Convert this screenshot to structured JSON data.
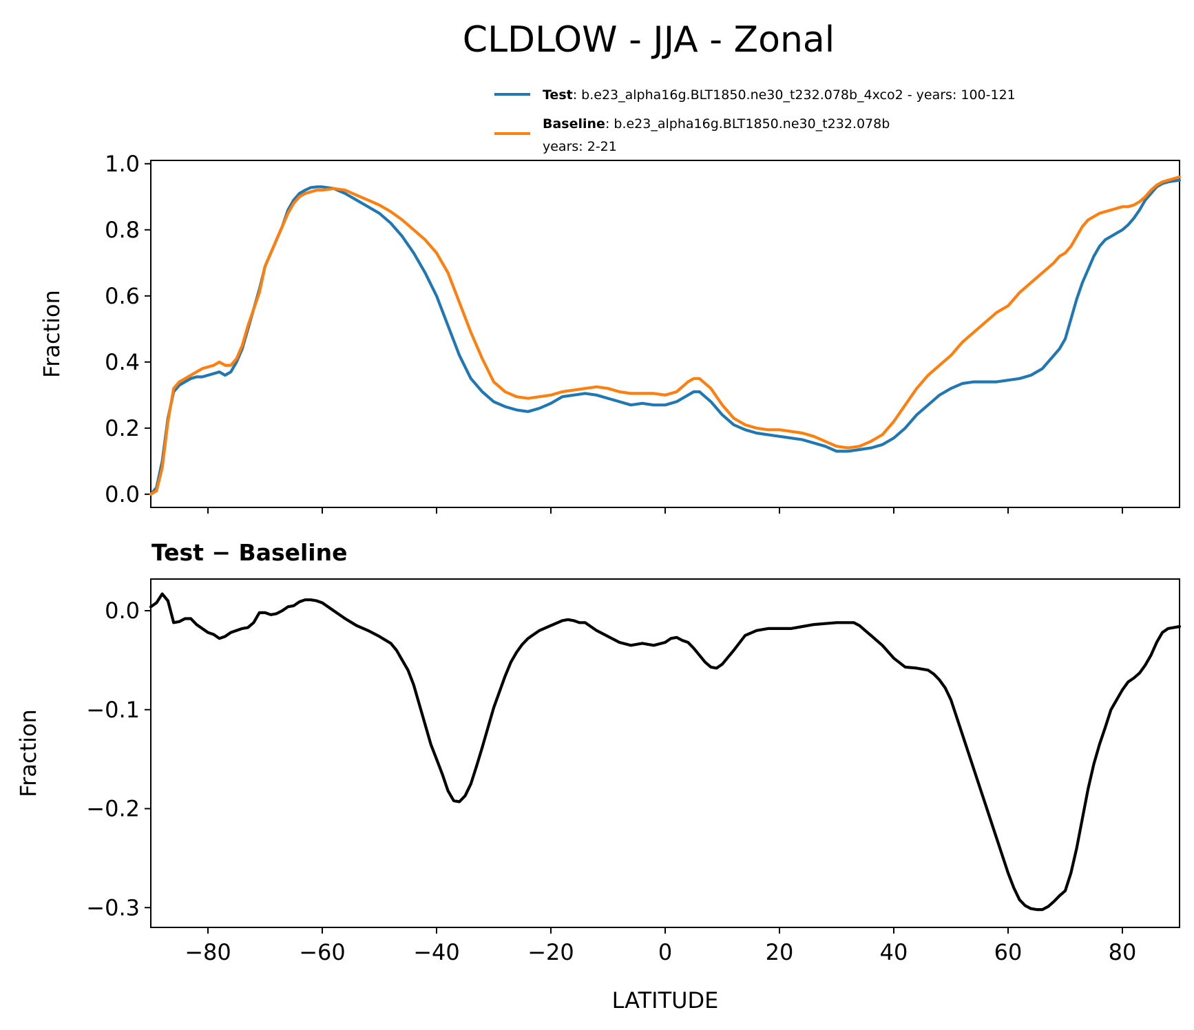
{
  "chart_data": [
    {
      "type": "line",
      "title": "CLDLOW - JJA - Zonal",
      "xlabel": "",
      "ylabel": "Fraction",
      "xlim": [
        -90,
        90
      ],
      "ylim": [
        -0.04,
        1.01
      ],
      "yticks": [
        0.0,
        0.2,
        0.4,
        0.6,
        0.8,
        1.0
      ],
      "ytick_labels": [
        "0.0",
        "0.2",
        "0.4",
        "0.6",
        "0.8",
        "1.0"
      ],
      "legend": {
        "position": "top-right",
        "entries": [
          {
            "name": "Test",
            "text": ": b.e23_alpha16g.BLT1850.ne30_t232.078b_4xco2 - years: 100-121",
            "text2": ""
          },
          {
            "name": "Baseline",
            "text": ": b.e23_alpha16g.BLT1850.ne30_t232.078b",
            "text2": "years: 2-21"
          }
        ]
      },
      "series": [
        {
          "name": "Test",
          "color": "#1f77b4",
          "x": [
            -90,
            -89,
            -88,
            -87,
            -86,
            -85,
            -84,
            -83,
            -82,
            -81,
            -80,
            -79,
            -78,
            -77,
            -76,
            -75,
            -74,
            -73,
            -72,
            -71,
            -70,
            -69,
            -68,
            -67,
            -66,
            -65,
            -64,
            -63,
            -62,
            -61,
            -60,
            -58,
            -56,
            -54,
            -52,
            -50,
            -48,
            -46,
            -44,
            -42,
            -40,
            -38,
            -36,
            -34,
            -32,
            -30,
            -28,
            -26,
            -24,
            -22,
            -20,
            -18,
            -16,
            -14,
            -12,
            -10,
            -8,
            -6,
            -4,
            -2,
            0,
            2,
            4,
            5,
            6,
            8,
            10,
            12,
            14,
            16,
            18,
            20,
            22,
            24,
            26,
            28,
            30,
            32,
            34,
            36,
            38,
            40,
            42,
            44,
            46,
            48,
            50,
            52,
            54,
            56,
            58,
            60,
            62,
            64,
            66,
            68,
            69,
            70,
            71,
            72,
            73,
            74,
            75,
            76,
            77,
            78,
            79,
            80,
            81,
            82,
            83,
            84,
            85,
            86,
            87,
            88,
            89,
            90
          ],
          "y": [
            0.0,
            0.02,
            0.1,
            0.23,
            0.31,
            0.33,
            0.34,
            0.35,
            0.355,
            0.355,
            0.36,
            0.365,
            0.37,
            0.36,
            0.37,
            0.4,
            0.44,
            0.5,
            0.56,
            0.62,
            0.69,
            0.73,
            0.77,
            0.81,
            0.86,
            0.89,
            0.91,
            0.92,
            0.928,
            0.93,
            0.93,
            0.925,
            0.91,
            0.89,
            0.87,
            0.85,
            0.82,
            0.78,
            0.73,
            0.67,
            0.6,
            0.51,
            0.42,
            0.35,
            0.31,
            0.28,
            0.265,
            0.255,
            0.25,
            0.26,
            0.275,
            0.295,
            0.3,
            0.305,
            0.3,
            0.29,
            0.28,
            0.27,
            0.275,
            0.27,
            0.27,
            0.28,
            0.3,
            0.31,
            0.31,
            0.28,
            0.24,
            0.21,
            0.195,
            0.185,
            0.18,
            0.175,
            0.17,
            0.165,
            0.155,
            0.145,
            0.13,
            0.13,
            0.135,
            0.14,
            0.15,
            0.17,
            0.2,
            0.24,
            0.27,
            0.3,
            0.32,
            0.335,
            0.34,
            0.34,
            0.34,
            0.345,
            0.35,
            0.36,
            0.38,
            0.42,
            0.44,
            0.47,
            0.53,
            0.59,
            0.64,
            0.68,
            0.72,
            0.75,
            0.77,
            0.78,
            0.79,
            0.8,
            0.815,
            0.835,
            0.86,
            0.89,
            0.91,
            0.93,
            0.94,
            0.945,
            0.948,
            0.95
          ]
        },
        {
          "name": "Baseline",
          "color": "#ff7f0e",
          "x": [
            -90,
            -89,
            -88,
            -87,
            -86,
            -85,
            -84,
            -83,
            -82,
            -81,
            -80,
            -79,
            -78,
            -77,
            -76,
            -75,
            -74,
            -73,
            -72,
            -71,
            -70,
            -69,
            -68,
            -67,
            -66,
            -65,
            -64,
            -63,
            -62,
            -61,
            -60,
            -58,
            -56,
            -54,
            -52,
            -50,
            -48,
            -46,
            -44,
            -42,
            -40,
            -38,
            -36,
            -34,
            -32,
            -30,
            -28,
            -26,
            -24,
            -22,
            -20,
            -18,
            -16,
            -14,
            -12,
            -10,
            -8,
            -6,
            -4,
            -2,
            0,
            2,
            4,
            5,
            6,
            8,
            10,
            12,
            14,
            16,
            18,
            20,
            22,
            24,
            26,
            28,
            30,
            32,
            34,
            36,
            38,
            40,
            42,
            44,
            46,
            48,
            50,
            52,
            54,
            56,
            58,
            60,
            62,
            64,
            66,
            68,
            69,
            70,
            71,
            72,
            73,
            74,
            75,
            76,
            77,
            78,
            79,
            80,
            81,
            82,
            83,
            84,
            85,
            86,
            87,
            88,
            89,
            90
          ],
          "y": [
            0.0,
            0.01,
            0.08,
            0.22,
            0.32,
            0.34,
            0.35,
            0.36,
            0.37,
            0.38,
            0.385,
            0.39,
            0.4,
            0.39,
            0.39,
            0.41,
            0.45,
            0.51,
            0.56,
            0.61,
            0.69,
            0.73,
            0.77,
            0.81,
            0.85,
            0.88,
            0.9,
            0.91,
            0.915,
            0.92,
            0.92,
            0.925,
            0.92,
            0.905,
            0.89,
            0.875,
            0.855,
            0.83,
            0.8,
            0.77,
            0.73,
            0.67,
            0.58,
            0.49,
            0.41,
            0.34,
            0.31,
            0.295,
            0.29,
            0.295,
            0.3,
            0.31,
            0.315,
            0.32,
            0.325,
            0.32,
            0.31,
            0.305,
            0.305,
            0.305,
            0.3,
            0.31,
            0.34,
            0.35,
            0.35,
            0.32,
            0.27,
            0.23,
            0.21,
            0.2,
            0.195,
            0.195,
            0.19,
            0.185,
            0.175,
            0.16,
            0.145,
            0.14,
            0.145,
            0.16,
            0.18,
            0.22,
            0.27,
            0.32,
            0.36,
            0.39,
            0.42,
            0.46,
            0.49,
            0.52,
            0.55,
            0.57,
            0.61,
            0.64,
            0.67,
            0.7,
            0.72,
            0.73,
            0.75,
            0.78,
            0.81,
            0.83,
            0.84,
            0.85,
            0.855,
            0.86,
            0.865,
            0.87,
            0.87,
            0.875,
            0.885,
            0.9,
            0.92,
            0.935,
            0.945,
            0.95,
            0.955,
            0.96
          ]
        }
      ]
    },
    {
      "type": "line",
      "title": "Test − Baseline",
      "xlabel": "LATITUDE",
      "ylabel": "Fraction",
      "xlim": [
        -90,
        90
      ],
      "ylim": [
        -0.32,
        0.032
      ],
      "xticks": [
        -80,
        -60,
        -40,
        -20,
        0,
        20,
        40,
        60,
        80
      ],
      "xtick_labels": [
        "−80",
        "−60",
        "−40",
        "−20",
        "0",
        "20",
        "40",
        "60",
        "80"
      ],
      "yticks": [
        0.0,
        -0.1,
        -0.2,
        -0.3
      ],
      "ytick_labels": [
        "0.0",
        "−0.1",
        "−0.2",
        "−0.3"
      ],
      "series": [
        {
          "name": "Test − Baseline",
          "color": "#000000",
          "x": [
            -90,
            -89,
            -88,
            -87,
            -86,
            -85,
            -84,
            -83,
            -82,
            -81,
            -80,
            -79,
            -78,
            -77,
            -76,
            -75,
            -74,
            -73,
            -72,
            -71,
            -70,
            -69,
            -68,
            -67,
            -66,
            -65,
            -64,
            -63,
            -62,
            -61,
            -60,
            -58,
            -56,
            -54,
            -52,
            -50,
            -48,
            -47,
            -46,
            -45,
            -44,
            -43,
            -42,
            -41,
            -40,
            -39,
            -38,
            -37,
            -36,
            -35,
            -34,
            -33,
            -32,
            -31,
            -30,
            -29,
            -28,
            -27,
            -26,
            -25,
            -24,
            -23,
            -22,
            -20,
            -18,
            -17,
            -16,
            -15,
            -14,
            -12,
            -10,
            -8,
            -6,
            -4,
            -2,
            0,
            1,
            2,
            3,
            4,
            5,
            6,
            7,
            8,
            9,
            10,
            12,
            14,
            16,
            18,
            20,
            22,
            24,
            26,
            28,
            30,
            32,
            33,
            34,
            35,
            36,
            38,
            40,
            42,
            44,
            46,
            47,
            48,
            49,
            50,
            52,
            54,
            56,
            58,
            60,
            61,
            62,
            63,
            64,
            65,
            66,
            67,
            68,
            69,
            70,
            71,
            72,
            73,
            74,
            75,
            76,
            77,
            78,
            79,
            80,
            81,
            82,
            83,
            84,
            85,
            86,
            87,
            88,
            89,
            90
          ],
          "y": [
            0.004,
            0.008,
            0.017,
            0.01,
            -0.012,
            -0.011,
            -0.008,
            -0.008,
            -0.014,
            -0.018,
            -0.022,
            -0.024,
            -0.028,
            -0.026,
            -0.022,
            -0.02,
            -0.018,
            -0.017,
            -0.012,
            -0.002,
            -0.002,
            -0.004,
            -0.003,
            0.0,
            0.004,
            0.005,
            0.009,
            0.011,
            0.011,
            0.01,
            0.008,
            0.0,
            -0.008,
            -0.015,
            -0.02,
            -0.026,
            -0.033,
            -0.04,
            -0.05,
            -0.06,
            -0.075,
            -0.095,
            -0.115,
            -0.135,
            -0.15,
            -0.165,
            -0.182,
            -0.192,
            -0.193,
            -0.187,
            -0.175,
            -0.157,
            -0.138,
            -0.118,
            -0.098,
            -0.082,
            -0.066,
            -0.052,
            -0.042,
            -0.034,
            -0.028,
            -0.024,
            -0.02,
            -0.015,
            -0.01,
            -0.009,
            -0.01,
            -0.012,
            -0.012,
            -0.02,
            -0.026,
            -0.032,
            -0.035,
            -0.033,
            -0.035,
            -0.032,
            -0.028,
            -0.027,
            -0.03,
            -0.032,
            -0.038,
            -0.045,
            -0.052,
            -0.057,
            -0.058,
            -0.054,
            -0.04,
            -0.025,
            -0.02,
            -0.018,
            -0.018,
            -0.018,
            -0.016,
            -0.014,
            -0.013,
            -0.012,
            -0.012,
            -0.012,
            -0.015,
            -0.02,
            -0.025,
            -0.035,
            -0.048,
            -0.057,
            -0.058,
            -0.06,
            -0.064,
            -0.07,
            -0.078,
            -0.09,
            -0.125,
            -0.16,
            -0.195,
            -0.23,
            -0.265,
            -0.28,
            -0.292,
            -0.298,
            -0.301,
            -0.302,
            -0.302,
            -0.299,
            -0.294,
            -0.288,
            -0.283,
            -0.265,
            -0.24,
            -0.21,
            -0.18,
            -0.155,
            -0.135,
            -0.118,
            -0.1,
            -0.09,
            -0.08,
            -0.072,
            -0.068,
            -0.063,
            -0.055,
            -0.045,
            -0.032,
            -0.022,
            -0.018,
            -0.017,
            -0.016
          ]
        }
      ]
    }
  ]
}
